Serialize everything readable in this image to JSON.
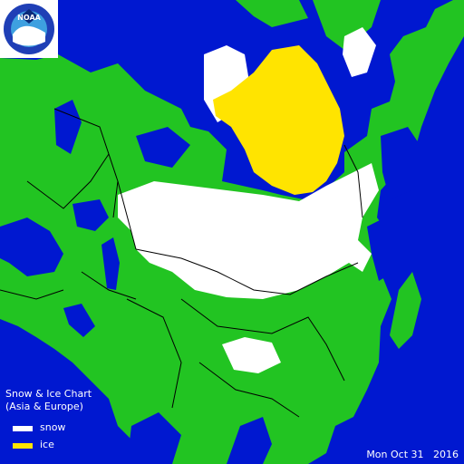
{
  "logo": {
    "text": "NOAA"
  },
  "legend": {
    "title_line1": "Snow & Ice Chart",
    "title_line2": "(Asia & Europe)",
    "items": [
      {
        "label": "snow",
        "color": "#ffffff"
      },
      {
        "label": "ice",
        "color": "#ffe400"
      }
    ]
  },
  "date_label": "Mon Oct 31   2016",
  "colors": {
    "water": "#0018d0",
    "land": "#22c422",
    "snow": "#ffffff",
    "ice": "#ffe400",
    "border": "#000000"
  }
}
